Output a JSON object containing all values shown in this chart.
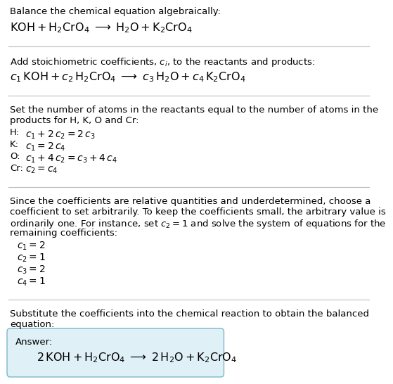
{
  "bg_color": "#ffffff",
  "text_color": "#000000",
  "answer_box_facecolor": "#dff0f7",
  "answer_box_edgecolor": "#7ab8cc",
  "sep_color": "#bbbbbb",
  "font_size": 9.5,
  "eq_font_size": 11.5,
  "small_font_size": 9.5,
  "sections": [
    {
      "type": "text_then_eq",
      "text": "Balance the chemical equation algebraically:",
      "eq": "\\mathrm{KOH} + \\mathrm{H_2CrO_4} \\;\\longrightarrow\\; \\mathrm{H_2O} + \\mathrm{K_2CrO_4}"
    },
    {
      "type": "sep"
    },
    {
      "type": "text_then_eq",
      "text": "Add stoichiometric coefficients, $c_i$, to the reactants and products:",
      "eq": "c_1\\,\\mathrm{KOH} + c_2\\,\\mathrm{H_2CrO_4} \\;\\longrightarrow\\; c_3\\,\\mathrm{H_2O} + c_4\\,\\mathrm{K_2CrO_4}"
    },
    {
      "type": "sep"
    },
    {
      "type": "text_block",
      "lines": [
        "Set the number of atoms in the reactants equal to the number of atoms in the",
        "products for H, K, O and Cr:"
      ]
    },
    {
      "type": "indented_eqs",
      "rows": [
        [
          "H:",
          "$c_1 + 2\\,c_2 = 2\\,c_3$"
        ],
        [
          "K:",
          "$c_1 = 2\\,c_4$"
        ],
        [
          "O:",
          "$c_1 + 4\\,c_2 = c_3 + 4\\,c_4$"
        ],
        [
          "Cr:",
          "$c_2 = c_4$"
        ]
      ]
    },
    {
      "type": "sep"
    },
    {
      "type": "text_block",
      "lines": [
        "Since the coefficients are relative quantities and underdetermined, choose a",
        "coefficient to set arbitrarily. To keep the coefficients small, the arbitrary value is",
        "ordinarily one. For instance, set $c_2 = 1$ and solve the system of equations for the",
        "remaining coefficients:"
      ]
    },
    {
      "type": "solutions",
      "rows": [
        "$c_1 = 2$",
        "$c_2 = 1$",
        "$c_3 = 2$",
        "$c_4 = 1$"
      ]
    },
    {
      "type": "sep"
    },
    {
      "type": "text_block",
      "lines": [
        "Substitute the coefficients into the chemical reaction to obtain the balanced",
        "equation:"
      ]
    },
    {
      "type": "answer_box",
      "label": "Answer:",
      "eq": "2\\,\\mathrm{KOH} + \\mathrm{H_2CrO_4} \\;\\longrightarrow\\; 2\\,\\mathrm{H_2O} + \\mathrm{K_2CrO_4}"
    }
  ]
}
